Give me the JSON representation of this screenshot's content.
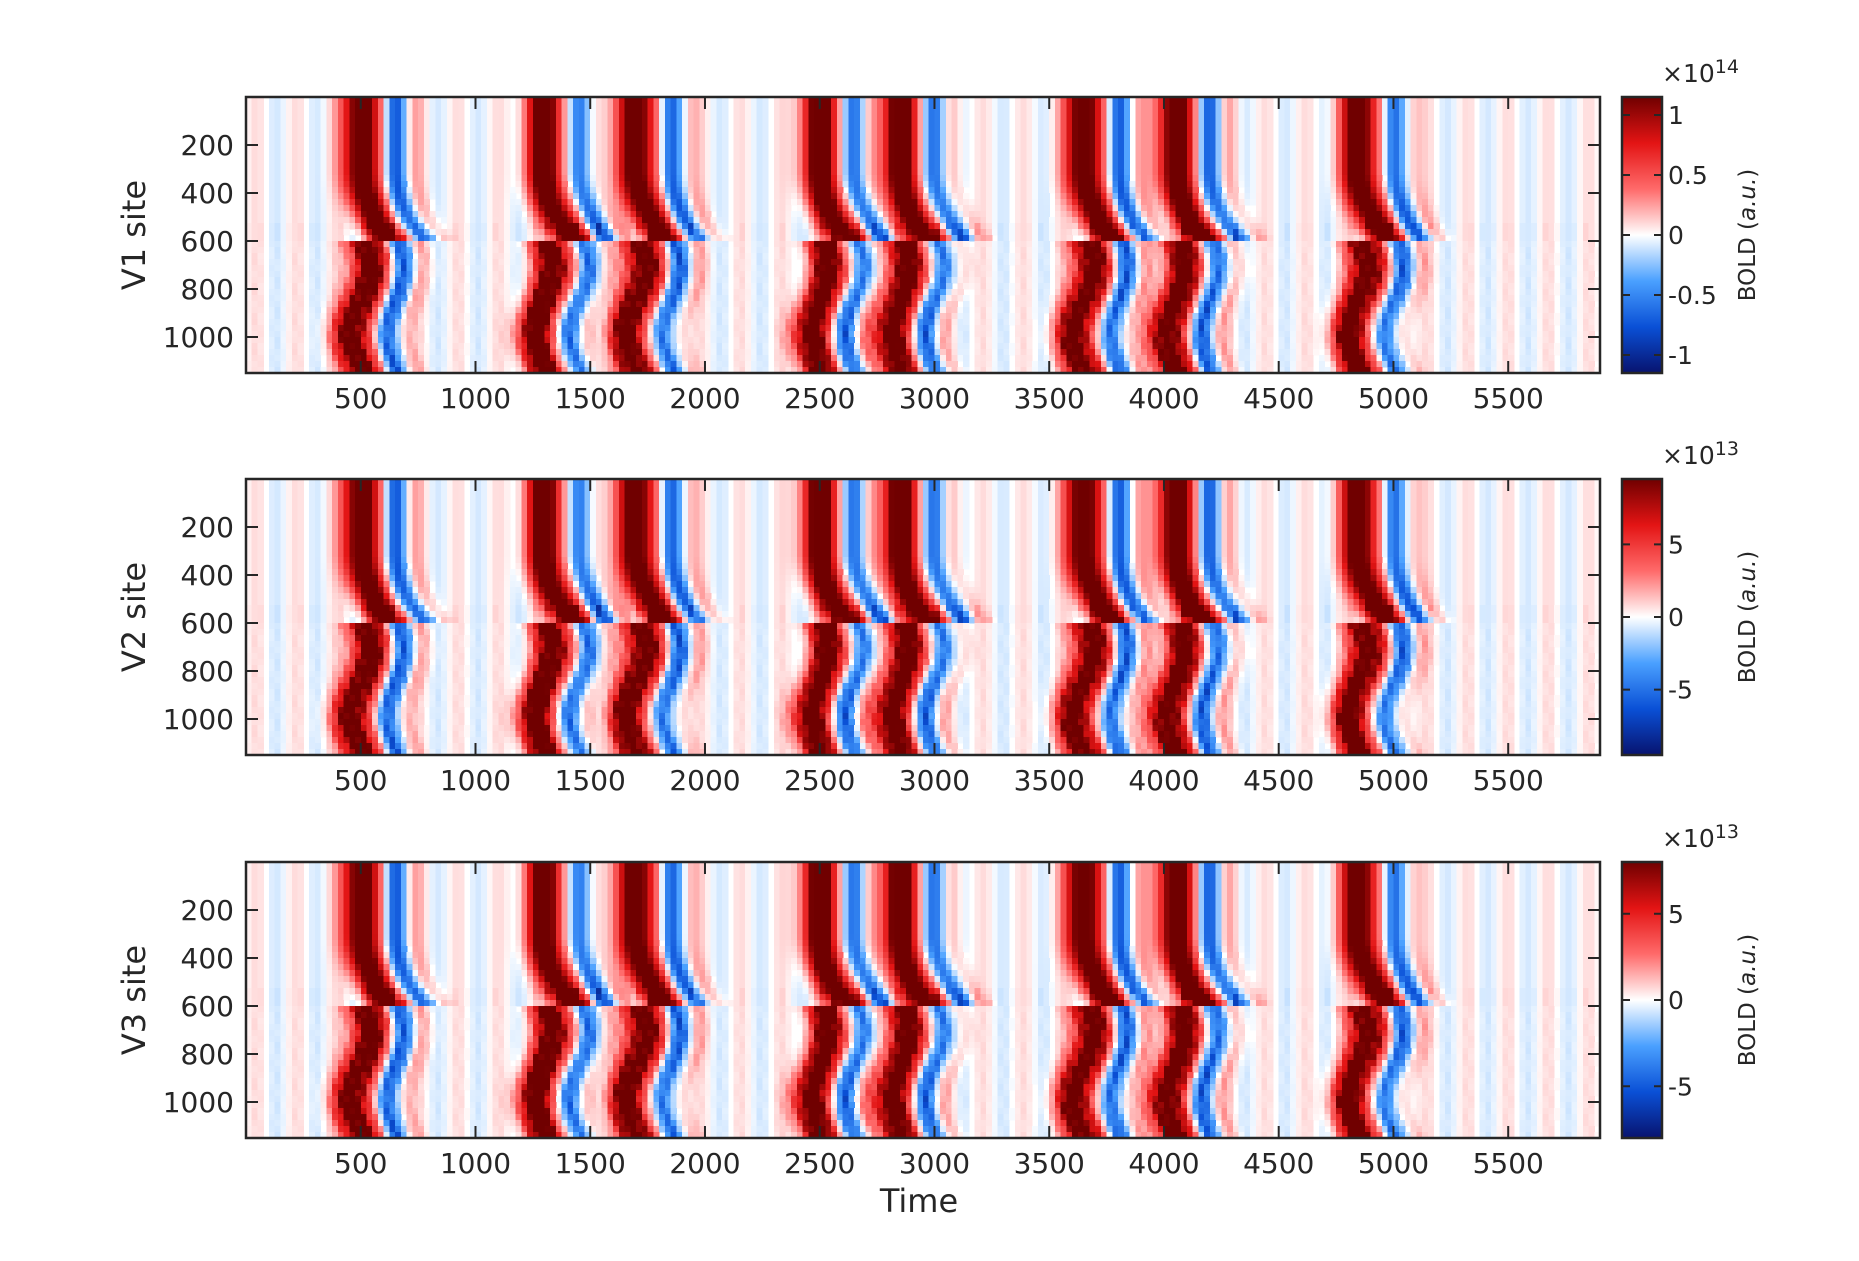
{
  "figure": {
    "xlabel": "Time"
  },
  "colormap": {
    "name": "blue-white-red",
    "stops": [
      "#08136f",
      "#0a50d6",
      "#4aa0ff",
      "#ffffff",
      "#ff6a6a",
      "#e31414",
      "#700000"
    ]
  },
  "chart_data": [
    {
      "type": "heatmap",
      "title": "",
      "xlabel": "",
      "ylabel": "V1 site",
      "xlim": [
        0,
        5900
      ],
      "ylim": [
        0,
        1150
      ],
      "x_ticks": [
        500,
        1000,
        1500,
        2000,
        2500,
        3000,
        3500,
        4000,
        4500,
        5000,
        5500
      ],
      "y_ticks": [
        200,
        400,
        600,
        800,
        1000
      ],
      "colorbar": {
        "label_main": "BOLD ",
        "label_unit": "a.u.",
        "exponent_base": "×10",
        "exponent": "14",
        "ticks": [
          "1",
          "0.5",
          "0",
          "-0.5",
          "-1"
        ],
        "tick_values": [
          1,
          0.5,
          0,
          -0.5,
          -1
        ],
        "clim": [
          -1.15,
          1.15
        ]
      },
      "events": [
        500,
        1300,
        1700,
        2500,
        2850,
        3650,
        4050,
        4850
      ]
    },
    {
      "type": "heatmap",
      "title": "",
      "xlabel": "",
      "ylabel": "V2 site",
      "xlim": [
        0,
        5900
      ],
      "ylim": [
        0,
        1150
      ],
      "x_ticks": [
        500,
        1000,
        1500,
        2000,
        2500,
        3000,
        3500,
        4000,
        4500,
        5000,
        5500
      ],
      "y_ticks": [
        200,
        400,
        600,
        800,
        1000
      ],
      "colorbar": {
        "label_main": "BOLD ",
        "label_unit": "a.u.",
        "exponent_base": "×10",
        "exponent": "13",
        "ticks": [
          "5",
          "0",
          "-5"
        ],
        "tick_values": [
          5,
          0,
          -5
        ],
        "clim": [
          -9.5,
          9.5
        ]
      },
      "events": [
        500,
        1300,
        1700,
        2500,
        2850,
        3650,
        4050,
        4850
      ]
    },
    {
      "type": "heatmap",
      "title": "",
      "xlabel": "Time",
      "ylabel": "V3 site",
      "xlim": [
        0,
        5900
      ],
      "ylim": [
        0,
        1150
      ],
      "x_ticks": [
        500,
        1000,
        1500,
        2000,
        2500,
        3000,
        3500,
        4000,
        4500,
        5000,
        5500
      ],
      "y_ticks": [
        200,
        400,
        600,
        800,
        1000
      ],
      "colorbar": {
        "label_main": "BOLD ",
        "label_unit": "a.u.",
        "exponent_base": "×10",
        "exponent": "13",
        "ticks": [
          "5",
          "0",
          "-5"
        ],
        "tick_values": [
          5,
          0,
          -5
        ],
        "clim": [
          -8,
          8
        ]
      },
      "events": [
        500,
        1300,
        1700,
        2500,
        2850,
        3650,
        4050,
        4850
      ]
    }
  ]
}
